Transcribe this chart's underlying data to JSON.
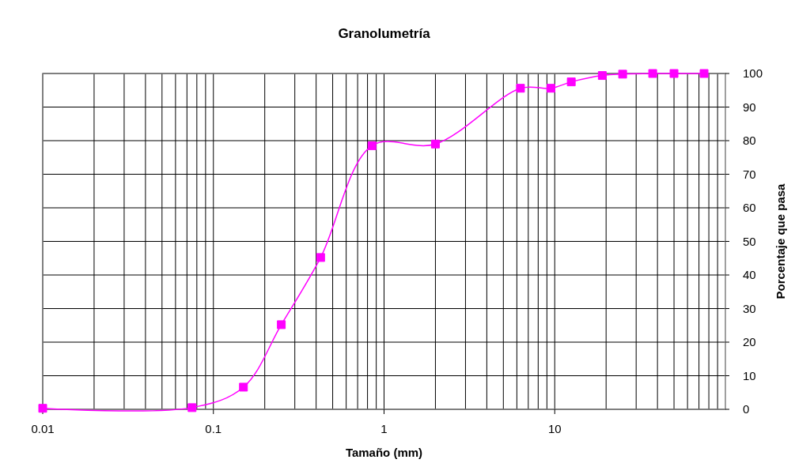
{
  "chart_data": {
    "type": "line",
    "title": "Granolumetría",
    "xlabel": "Tamaño (mm)",
    "ylabel": "Porcentaje que pasa",
    "log": "x",
    "grid": true,
    "marker": "square",
    "x": [
      0.01,
      0.075,
      0.15,
      0.25,
      0.425,
      0.85,
      2,
      6.3,
      9.5,
      12.5,
      19,
      25,
      37.5,
      50,
      75
    ],
    "series": [
      {
        "color": "#ff00ff",
        "values": [
          0.3,
          0.5,
          6.6,
          25.2,
          45.2,
          78.5,
          79,
          95.6,
          95.6,
          97.5,
          99.4,
          99.8,
          100,
          100,
          100
        ]
      }
    ],
    "xlim": [
      0.01,
      100
    ],
    "xticks": [
      0.01,
      {
        "value": 0.02,
        "label": null
      },
      {
        "value": 0.03,
        "label": null
      },
      {
        "value": 0.04,
        "label": null
      },
      {
        "value": 0.05,
        "label": null
      },
      {
        "value": 0.06,
        "label": null
      },
      {
        "value": 0.07,
        "label": null
      },
      {
        "value": 0.08,
        "label": null
      },
      {
        "value": 0.09,
        "label": null
      },
      0.1,
      {
        "value": 0.2,
        "label": null
      },
      {
        "value": 0.3,
        "label": null
      },
      {
        "value": 0.4,
        "label": null
      },
      {
        "value": 0.5,
        "label": null
      },
      {
        "value": 0.6,
        "label": null
      },
      {
        "value": 0.7,
        "label": null
      },
      {
        "value": 0.8,
        "label": null
      },
      {
        "value": 0.9,
        "label": null
      },
      1,
      {
        "value": 2,
        "label": null
      },
      {
        "value": 3,
        "label": null
      },
      {
        "value": 4,
        "label": null
      },
      {
        "value": 5,
        "label": null
      },
      {
        "value": 6,
        "label": null
      },
      {
        "value": 7,
        "label": null
      },
      {
        "value": 8,
        "label": null
      },
      {
        "value": 9,
        "label": null
      },
      10,
      {
        "value": 20,
        "label": null
      },
      {
        "value": 30,
        "label": null
      },
      {
        "value": 40,
        "label": null
      },
      {
        "value": 50,
        "label": null
      },
      {
        "value": 60,
        "label": null
      },
      {
        "value": 70,
        "label": null
      },
      {
        "value": 80,
        "label": null
      },
      {
        "value": 90,
        "label": null
      }
    ],
    "ylim": [
      0,
      100
    ],
    "yticks": [
      0,
      10,
      20,
      30,
      40,
      50,
      60,
      70,
      80,
      90,
      100
    ]
  }
}
